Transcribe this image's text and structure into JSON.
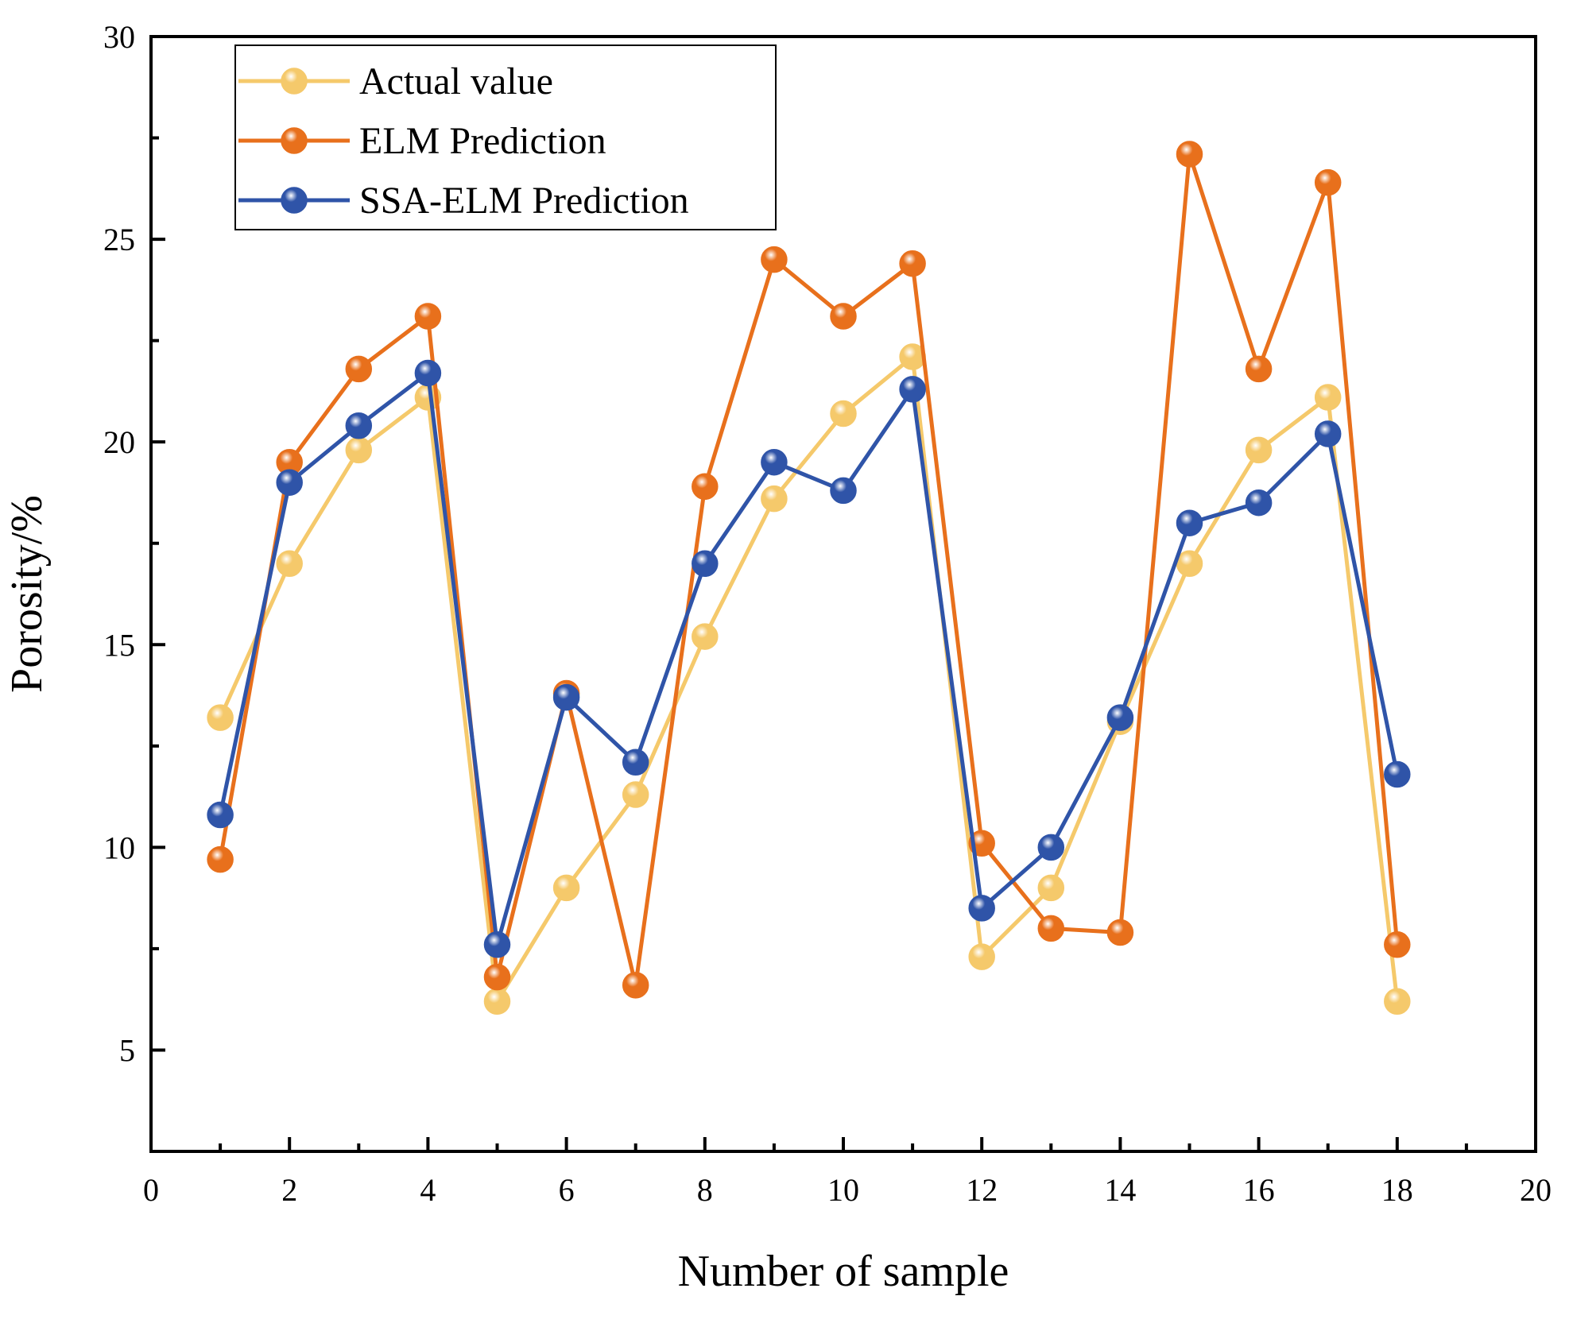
{
  "chart_data": {
    "type": "line",
    "xlabel": "Number of sample",
    "ylabel": "Porosity/%",
    "xlim": [
      0,
      20
    ],
    "ylim": [
      2.5,
      30
    ],
    "xticks": [
      0,
      2,
      4,
      6,
      8,
      10,
      12,
      14,
      16,
      18,
      20
    ],
    "yticks": [
      5,
      10,
      15,
      20,
      25,
      30
    ],
    "grid": false,
    "legend_position": "top-left",
    "x": [
      1,
      2,
      3,
      4,
      5,
      6,
      7,
      8,
      9,
      10,
      11,
      12,
      13,
      14,
      15,
      16,
      17,
      18
    ],
    "series": [
      {
        "name": "Actual value",
        "color": "#f5c96b",
        "values": [
          13.2,
          17.0,
          19.8,
          21.1,
          6.2,
          9.0,
          11.3,
          15.2,
          18.6,
          20.7,
          22.1,
          7.3,
          9.0,
          13.1,
          17.0,
          19.8,
          21.1,
          6.2
        ]
      },
      {
        "name": "ELM Prediction",
        "color": "#e8701c",
        "values": [
          9.7,
          19.5,
          21.8,
          23.1,
          6.8,
          13.8,
          6.6,
          18.9,
          24.5,
          23.1,
          24.4,
          10.1,
          8.0,
          7.9,
          27.1,
          21.8,
          26.4,
          7.6
        ]
      },
      {
        "name": "SSA-ELM Prediction",
        "color": "#2f54a8",
        "values": [
          10.8,
          19.0,
          20.4,
          21.7,
          7.6,
          13.7,
          12.1,
          17.0,
          19.5,
          18.8,
          21.3,
          8.5,
          10.0,
          13.2,
          18.0,
          18.5,
          20.2,
          11.8
        ]
      }
    ]
  }
}
